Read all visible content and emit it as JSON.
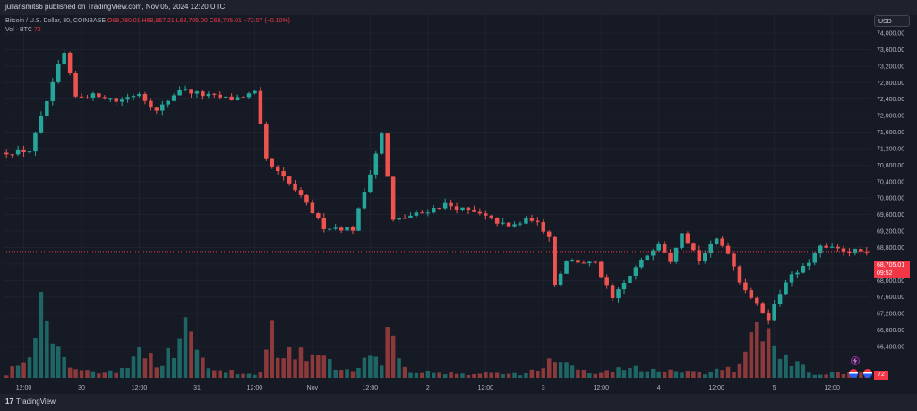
{
  "header": {
    "published": "juliansmits6 published on TradingView.com, Nov 05, 2024 12:20 UTC"
  },
  "symbol_line": {
    "name": "Bitcoin / U.S. Dollar, 30, COINBASE",
    "open": "O68,780.01",
    "high": "H68,867.21",
    "low": "L68,705.00",
    "close": "C68,705.01",
    "change": "−72.07 (−0.10%)"
  },
  "volume_line": {
    "label": "Vol · BTC",
    "value": "72"
  },
  "currency_button": "USD",
  "price_tag": {
    "price": "68,705.01",
    "countdown": "09:52"
  },
  "volume_tag": "72",
  "footer": {
    "brand": "TradingView",
    "logo": "17"
  },
  "colors": {
    "up": "#26a69a",
    "down": "#ef5350",
    "background": "#161a25",
    "grid": "#1f2330",
    "last_price_line": "#f23645"
  },
  "icons": [
    "lightning-event-icon",
    "us-flag-event-icon",
    "us-flag-event-icon"
  ],
  "chart_data": {
    "type": "candlestick",
    "title": "",
    "timeframe": "30",
    "xlabel": "",
    "ylabel": "",
    "y_ticks": [
      "74,000.00",
      "73,600.00",
      "73,200.00",
      "72,800.00",
      "72,400.00",
      "72,000.00",
      "71,600.00",
      "71,200.00",
      "70,800.00",
      "70,400.00",
      "70,000.00",
      "69,600.00",
      "69,200.00",
      "68,800.00",
      "68,400.00",
      "68,000.00",
      "67,600.00",
      "67,200.00",
      "66,800.00",
      "66,400.00"
    ],
    "y_tick_values": [
      74000,
      73600,
      73200,
      72800,
      72400,
      72000,
      71600,
      71200,
      70800,
      70400,
      70000,
      69600,
      69200,
      68800,
      68400,
      68000,
      67600,
      67200,
      66800,
      66400
    ],
    "ylim": [
      66200,
      74200
    ],
    "x_ticks": [
      "12:00",
      "30",
      "12:00",
      "31",
      "12:00",
      "Nov",
      "12:00",
      "2",
      "12:00",
      "3",
      "12:00",
      "4",
      "12:00",
      "5",
      "12:00"
    ],
    "x_tick_candle_index": [
      3,
      13,
      23,
      33,
      43,
      53,
      63,
      73,
      83,
      93,
      103,
      113,
      123,
      133,
      143
    ],
    "n_candles": 150,
    "last_price": 68705.01,
    "anchors": [
      [
        0,
        71100
      ],
      [
        5,
        71150
      ],
      [
        9,
        72750
      ],
      [
        10,
        73200
      ],
      [
        11,
        73500
      ],
      [
        13,
        72450
      ],
      [
        17,
        72500
      ],
      [
        20,
        72350
      ],
      [
        24,
        72550
      ],
      [
        27,
        72100
      ],
      [
        31,
        72650
      ],
      [
        35,
        72500
      ],
      [
        40,
        72400
      ],
      [
        44,
        72550
      ],
      [
        46,
        70900
      ],
      [
        51,
        70200
      ],
      [
        56,
        69300
      ],
      [
        61,
        69250
      ],
      [
        66,
        71550
      ],
      [
        68,
        69450
      ],
      [
        73,
        69650
      ],
      [
        77,
        69850
      ],
      [
        83,
        69600
      ],
      [
        88,
        69300
      ],
      [
        92,
        69500
      ],
      [
        95,
        69100
      ],
      [
        96,
        67900
      ],
      [
        98,
        68500
      ],
      [
        103,
        68400
      ],
      [
        106,
        67550
      ],
      [
        110,
        68300
      ],
      [
        114,
        68950
      ],
      [
        116,
        68500
      ],
      [
        118,
        69200
      ],
      [
        121,
        68500
      ],
      [
        124,
        69000
      ],
      [
        126,
        68700
      ],
      [
        128,
        68000
      ],
      [
        131,
        67400
      ],
      [
        133,
        67100
      ],
      [
        136,
        68000
      ],
      [
        139,
        68300
      ],
      [
        142,
        68800
      ],
      [
        145,
        68750
      ],
      [
        149,
        68705
      ]
    ],
    "volume_ylim": [
      0,
      100
    ],
    "volume_anchors": [
      [
        0,
        5
      ],
      [
        4,
        35
      ],
      [
        6,
        90
      ],
      [
        9,
        60
      ],
      [
        11,
        10
      ],
      [
        14,
        8
      ],
      [
        20,
        8
      ],
      [
        24,
        40
      ],
      [
        27,
        12
      ],
      [
        31,
        60
      ],
      [
        35,
        8
      ],
      [
        44,
        5
      ],
      [
        46,
        60
      ],
      [
        48,
        25
      ],
      [
        51,
        30
      ],
      [
        55,
        20
      ],
      [
        58,
        8
      ],
      [
        65,
        25
      ],
      [
        66,
        80
      ],
      [
        68,
        25
      ],
      [
        70,
        10
      ],
      [
        75,
        5
      ],
      [
        90,
        5
      ],
      [
        95,
        20
      ],
      [
        97,
        15
      ],
      [
        102,
        5
      ],
      [
        108,
        12
      ],
      [
        114,
        8
      ],
      [
        120,
        5
      ],
      [
        126,
        10
      ],
      [
        128,
        30
      ],
      [
        130,
        50
      ],
      [
        131,
        60
      ],
      [
        133,
        40
      ],
      [
        135,
        20
      ],
      [
        140,
        5
      ],
      [
        149,
        5
      ]
    ]
  }
}
